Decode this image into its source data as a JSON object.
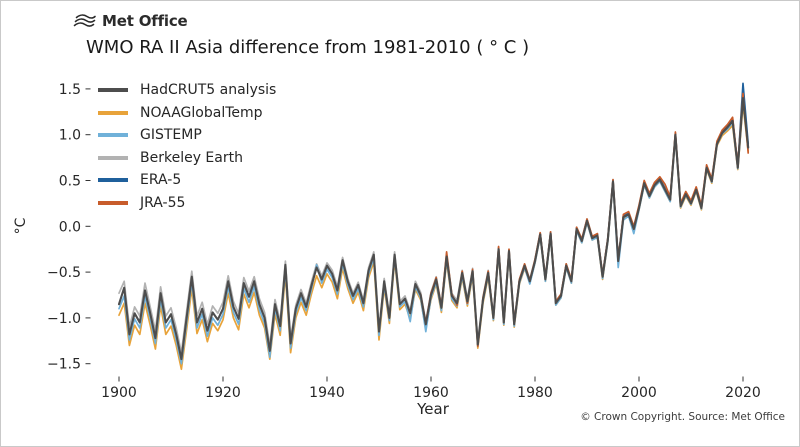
{
  "header": {
    "brand": "Met Office",
    "logo_icon": "met-office-waves-icon"
  },
  "footer": {
    "credit": "© Crown Copyright. Source: Met Office"
  },
  "chart_data": {
    "type": "line",
    "title": "WMO RA II Asia difference from 1981-2010 ( ° C )",
    "xlabel": "Year",
    "ylabel": "°C",
    "grid": false,
    "legend_position": "upper-left",
    "xlim": [
      1897,
      2024
    ],
    "ylim": [
      -1.63,
      1.64
    ],
    "x_ticks": [
      1900,
      1920,
      1940,
      1960,
      1980,
      2000,
      2020
    ],
    "y_tick_labels": [
      "1.5",
      "1.0",
      "0.5",
      "0.0",
      "−0.5",
      "−1.0",
      "−1.5"
    ],
    "y_tick_values": [
      1.5,
      1.0,
      0.5,
      0.0,
      -0.5,
      -1.0,
      -1.5
    ],
    "series": [
      {
        "name": "HadCRUT5 analysis",
        "color": "#4d4d4d",
        "line_width": 2.1,
        "start_year": 1900,
        "end_year": 2021,
        "values": [
          -0.85,
          -0.67,
          -1.18,
          -0.95,
          -1.05,
          -0.7,
          -0.95,
          -1.22,
          -0.73,
          -1.05,
          -0.96,
          -1.18,
          -1.45,
          -1.0,
          -0.55,
          -1.05,
          -0.9,
          -1.14,
          -0.94,
          -1.02,
          -0.9,
          -0.6,
          -0.88,
          -1.01,
          -0.62,
          -0.77,
          -0.6,
          -0.85,
          -1.0,
          -1.36,
          -0.85,
          -1.09,
          -0.42,
          -1.28,
          -0.9,
          -0.73,
          -0.88,
          -0.65,
          -0.45,
          -0.58,
          -0.43,
          -0.52,
          -0.7,
          -0.37,
          -0.6,
          -0.76,
          -0.64,
          -0.84,
          -0.48,
          -0.31,
          -1.15,
          -0.6,
          -1.0,
          -0.31,
          -0.85,
          -0.79,
          -0.95,
          -0.63,
          -0.75,
          -1.07,
          -0.75,
          -0.58,
          -0.89,
          -0.33,
          -0.76,
          -0.84,
          -0.51,
          -0.82,
          -0.49,
          -1.29,
          -0.8,
          -0.51,
          -1.0,
          -0.25,
          -1.05,
          -0.27,
          -1.07,
          -0.6,
          -0.43,
          -0.6,
          -0.38,
          -0.09,
          -0.58,
          -0.08,
          -0.84,
          -0.76,
          -0.43,
          -0.6,
          -0.03,
          -0.16,
          0.06,
          -0.13,
          -0.1,
          -0.55,
          -0.15,
          0.49,
          -0.38,
          0.1,
          0.13,
          -0.03,
          0.2,
          0.47,
          0.33,
          0.45,
          0.51,
          0.4,
          0.29,
          1.0,
          0.22,
          0.35,
          0.25,
          0.4,
          0.2,
          0.64,
          0.49,
          0.9,
          1.02,
          1.08,
          1.15,
          0.64,
          1.4,
          0.86
        ]
      },
      {
        "name": "NOAAGlobalTemp",
        "color": "#e8a33a",
        "line_width": 1.7,
        "start_year": 1900,
        "end_year": 2021,
        "values": [
          -0.97,
          -0.84,
          -1.3,
          -1.08,
          -1.18,
          -0.84,
          -1.08,
          -1.34,
          -0.87,
          -1.18,
          -1.09,
          -1.3,
          -1.56,
          -1.13,
          -0.68,
          -1.17,
          -1.02,
          -1.26,
          -1.06,
          -1.14,
          -1.02,
          -0.73,
          -1.0,
          -1.13,
          -0.74,
          -0.89,
          -0.72,
          -0.97,
          -1.11,
          -1.45,
          -0.96,
          -1.19,
          -0.53,
          -1.38,
          -1.0,
          -0.83,
          -0.97,
          -0.74,
          -0.54,
          -0.67,
          -0.52,
          -0.61,
          -0.79,
          -0.46,
          -0.68,
          -0.84,
          -0.72,
          -0.92,
          -0.56,
          -0.39,
          -1.24,
          -0.67,
          -1.06,
          -0.37,
          -0.91,
          -0.85,
          -1.01,
          -0.69,
          -0.8,
          -1.12,
          -0.8,
          -0.63,
          -0.94,
          -0.38,
          -0.81,
          -0.89,
          -0.56,
          -0.87,
          -0.54,
          -1.33,
          -0.84,
          -0.55,
          -1.03,
          -0.28,
          -1.08,
          -0.3,
          -1.1,
          -0.63,
          -0.46,
          -0.62,
          -0.4,
          -0.11,
          -0.6,
          -0.1,
          -0.86,
          -0.78,
          -0.45,
          -0.62,
          -0.05,
          -0.18,
          0.04,
          -0.15,
          -0.12,
          -0.58,
          -0.17,
          0.47,
          -0.4,
          0.08,
          0.15,
          -0.05,
          0.18,
          0.45,
          0.31,
          0.43,
          0.49,
          0.38,
          0.27,
          0.98,
          0.2,
          0.33,
          0.23,
          0.38,
          0.18,
          0.62,
          0.47,
          0.88,
          0.99,
          1.04,
          1.1,
          0.62,
          1.33,
          0.82
        ]
      },
      {
        "name": "GISTEMP",
        "color": "#70b1d9",
        "line_width": 1.7,
        "start_year": 1900,
        "end_year": 2021,
        "values": [
          -0.9,
          -0.76,
          -1.24,
          -1.01,
          -1.11,
          -0.77,
          -1.01,
          -1.28,
          -0.8,
          -1.11,
          -1.02,
          -1.24,
          -1.5,
          -1.06,
          -0.61,
          -1.11,
          -0.96,
          -1.2,
          -1.0,
          -1.08,
          -0.96,
          -0.66,
          -0.94,
          -1.07,
          -0.68,
          -0.83,
          -0.66,
          -0.91,
          -1.06,
          -1.43,
          -0.9,
          -1.14,
          -0.47,
          -1.33,
          -0.95,
          -0.78,
          -0.92,
          -0.69,
          -0.42,
          -0.62,
          -0.47,
          -0.56,
          -0.74,
          -0.41,
          -0.64,
          -0.8,
          -0.68,
          -0.88,
          -0.52,
          -0.35,
          -1.19,
          -0.64,
          -1.03,
          -0.34,
          -0.88,
          -0.82,
          -1.04,
          -0.66,
          -0.78,
          -1.15,
          -0.78,
          -0.61,
          -0.92,
          -0.36,
          -0.79,
          -0.87,
          -0.54,
          -0.85,
          -0.52,
          -1.31,
          -0.82,
          -0.53,
          -1.02,
          -0.27,
          -1.07,
          -0.29,
          -1.09,
          -0.62,
          -0.45,
          -0.63,
          -0.4,
          -0.11,
          -0.6,
          -0.1,
          -0.86,
          -0.78,
          -0.45,
          -0.62,
          -0.05,
          -0.18,
          0.04,
          -0.15,
          -0.12,
          -0.57,
          -0.17,
          0.47,
          -0.45,
          0.07,
          0.11,
          -0.08,
          0.18,
          0.45,
          0.31,
          0.43,
          0.49,
          0.38,
          0.27,
          0.99,
          0.21,
          0.34,
          0.24,
          0.39,
          0.19,
          0.63,
          0.48,
          0.89,
          1.01,
          1.06,
          1.13,
          0.63,
          1.38,
          0.84
        ]
      },
      {
        "name": "Berkeley Earth",
        "color": "#b2b2b2",
        "line_width": 1.7,
        "start_year": 1900,
        "end_year": 2021,
        "values": [
          -0.73,
          -0.6,
          -1.1,
          -0.88,
          -0.98,
          -0.62,
          -0.88,
          -1.14,
          -0.66,
          -0.98,
          -0.89,
          -1.11,
          -1.38,
          -0.93,
          -0.49,
          -0.98,
          -0.83,
          -1.07,
          -0.87,
          -0.95,
          -0.83,
          -0.54,
          -0.82,
          -0.95,
          -0.56,
          -0.71,
          -0.55,
          -0.79,
          -0.94,
          -1.3,
          -0.8,
          -1.04,
          -0.38,
          -1.23,
          -0.86,
          -0.69,
          -0.84,
          -0.61,
          -0.41,
          -0.54,
          -0.4,
          -0.48,
          -0.66,
          -0.34,
          -0.57,
          -0.73,
          -0.61,
          -0.81,
          -0.45,
          -0.28,
          -1.12,
          -0.57,
          -0.97,
          -0.28,
          -0.82,
          -0.76,
          -0.92,
          -0.6,
          -0.72,
          -1.04,
          -0.72,
          -0.55,
          -0.86,
          -0.3,
          -0.73,
          -0.81,
          -0.48,
          -0.79,
          -0.46,
          -1.26,
          -0.77,
          -0.48,
          -0.98,
          -0.23,
          -1.03,
          -0.25,
          -1.05,
          -0.58,
          -0.41,
          -0.58,
          -0.36,
          -0.07,
          -0.56,
          -0.06,
          -0.82,
          -0.74,
          -0.41,
          -0.58,
          -0.01,
          -0.14,
          0.08,
          -0.11,
          -0.08,
          -0.53,
          -0.13,
          0.51,
          -0.36,
          0.12,
          0.15,
          -0.01,
          0.22,
          0.49,
          0.35,
          0.47,
          0.53,
          0.42,
          0.31,
          1.02,
          0.24,
          0.37,
          0.27,
          0.42,
          0.22,
          0.66,
          0.51,
          0.92,
          1.04,
          1.1,
          1.17,
          0.66,
          1.42,
          0.88
        ]
      },
      {
        "name": "ERA-5",
        "color": "#1f609c",
        "line_width": 1.7,
        "start_year": 1979,
        "end_year": 2021,
        "values": [
          -0.6,
          -0.38,
          -0.08,
          -0.57,
          -0.07,
          -0.83,
          -0.75,
          -0.42,
          -0.59,
          -0.02,
          -0.15,
          0.07,
          -0.12,
          -0.09,
          -0.54,
          -0.14,
          0.5,
          -0.37,
          0.11,
          0.14,
          -0.02,
          0.21,
          0.48,
          0.34,
          0.46,
          0.52,
          0.41,
          0.3,
          1.01,
          0.23,
          0.36,
          0.26,
          0.41,
          0.21,
          0.65,
          0.5,
          0.91,
          1.03,
          1.09,
          1.18,
          0.65,
          1.56,
          0.9
        ]
      },
      {
        "name": "JRA-55",
        "color": "#c85c2b",
        "line_width": 1.7,
        "start_year": 1958,
        "end_year": 2021,
        "values": [
          -0.74,
          -1.05,
          -0.73,
          -0.56,
          -0.87,
          -0.28,
          -0.74,
          -0.86,
          -0.49,
          -0.84,
          -0.47,
          -1.31,
          -0.78,
          -0.49,
          -0.99,
          -0.22,
          -1.04,
          -0.25,
          -1.06,
          -0.58,
          -0.41,
          -0.59,
          -0.36,
          -0.07,
          -0.56,
          -0.06,
          -0.82,
          -0.74,
          -0.41,
          -0.58,
          -0.01,
          -0.14,
          0.08,
          -0.11,
          -0.08,
          -0.53,
          -0.13,
          0.51,
          -0.36,
          0.13,
          0.16,
          0.0,
          0.23,
          0.5,
          0.36,
          0.48,
          0.54,
          0.46,
          0.32,
          1.03,
          0.25,
          0.38,
          0.28,
          0.43,
          0.23,
          0.67,
          0.52,
          0.93,
          1.05,
          1.11,
          1.19,
          0.67,
          1.45,
          0.8
        ]
      }
    ]
  }
}
